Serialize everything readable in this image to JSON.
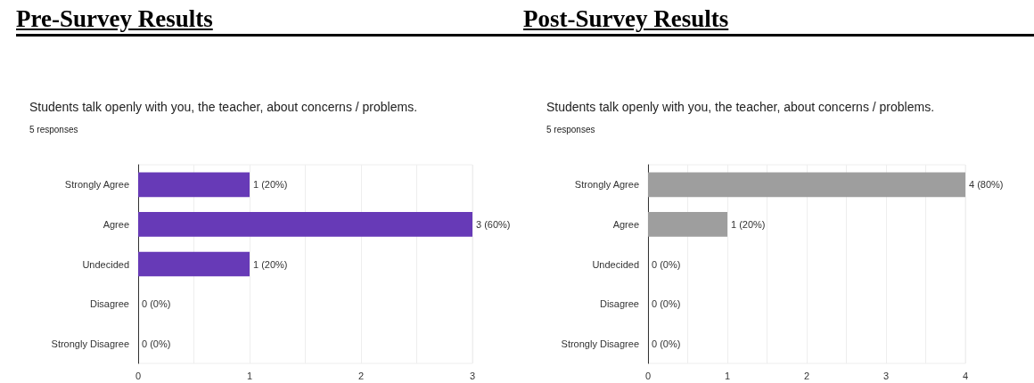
{
  "chart_data": [
    {
      "type": "bar",
      "orientation": "horizontal",
      "title": "Pre-Survey Results",
      "subtitle": "Students talk openly with you, the teacher, about concerns / problems.",
      "annotations": [
        "5 responses"
      ],
      "categories": [
        "Strongly Agree",
        "Agree",
        "Undecided",
        "Disagree",
        "Strongly Disagree"
      ],
      "values": [
        1,
        3,
        1,
        0,
        0
      ],
      "color": "#673ab7",
      "value_labels": [
        "1 (20%)",
        "3 (60%)",
        "1 (20%)",
        "0 (0%)",
        "0 (0%)"
      ],
      "xlim": [
        0,
        3
      ],
      "xticks": [
        0,
        {
          "value": 0.5,
          "label": null
        },
        1,
        {
          "value": 1.5,
          "label": null
        },
        2,
        {
          "value": 2.5,
          "label": null
        },
        3
      ],
      "grid": "x"
    },
    {
      "type": "bar",
      "orientation": "horizontal",
      "title": "Post-Survey Results",
      "subtitle": "Students talk openly with you, the teacher, about concerns / problems.",
      "annotations": [
        "5 responses"
      ],
      "categories": [
        "Strongly Agree",
        "Agree",
        "Undecided",
        "Disagree",
        "Strongly Disagree"
      ],
      "values": [
        4,
        1,
        0,
        0,
        0
      ],
      "color": "#9e9e9e",
      "value_labels": [
        "4 (80%)",
        "1 (20%)",
        "0 (0%)",
        "0 (0%)",
        "0 (0%)"
      ],
      "xlim": [
        0,
        4
      ],
      "xticks": [
        0,
        {
          "value": 0.5,
          "label": null
        },
        1,
        {
          "value": 1.5,
          "label": null
        },
        2,
        {
          "value": 2.5,
          "label": null
        },
        3,
        {
          "value": 3.5,
          "label": null
        },
        4
      ],
      "grid": "x"
    }
  ]
}
